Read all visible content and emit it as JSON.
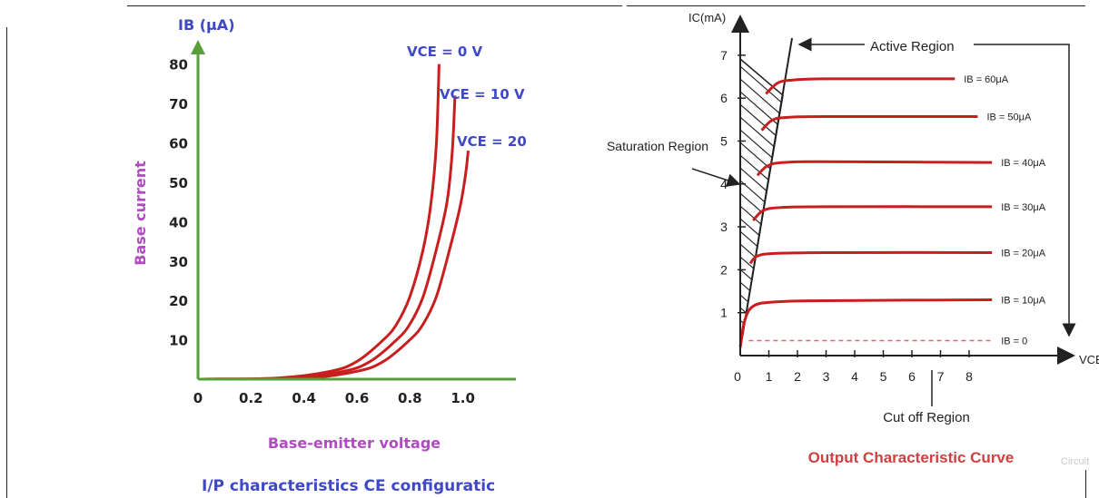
{
  "colors": {
    "axis_left": "#5a9e3a",
    "curve": "#c81e1e",
    "label_blue": "#3f49c8",
    "label_purple": "#b04bc0",
    "text_dark": "#222222",
    "dashed": "#d46a6a",
    "title_red": "#d04040"
  },
  "chart_data": [
    {
      "type": "line",
      "title": "I/P characteristics CE configuratic",
      "xlabel": "Base-emitter voltage",
      "ylabel": "Base current",
      "y_axis_unit_label": "IB (μA)",
      "x_ticks": [
        "0",
        "0.2",
        "0.4",
        "0.6",
        "0.8",
        "1.0"
      ],
      "y_ticks": [
        "10",
        "20",
        "30",
        "40",
        "50",
        "60",
        "70",
        "80"
      ],
      "xlim": [
        0,
        1.2
      ],
      "ylim": [
        0,
        85
      ],
      "series": [
        {
          "name": "VCE = 0 V",
          "x": [
            0,
            0.3,
            0.5,
            0.6,
            0.7,
            0.75,
            0.8,
            0.85,
            0.88,
            0.9,
            0.91
          ],
          "y": [
            0,
            0.3,
            2,
            4.5,
            10,
            14,
            21,
            33,
            45,
            60,
            80
          ]
        },
        {
          "name": "VCE = 10 V",
          "x": [
            0,
            0.35,
            0.55,
            0.65,
            0.75,
            0.8,
            0.85,
            0.9,
            0.94,
            0.96,
            0.97
          ],
          "y": [
            0,
            0.3,
            2,
            4.5,
            10,
            14,
            21,
            33,
            45,
            58,
            72
          ]
        },
        {
          "name": "VCE = 20",
          "x": [
            0,
            0.4,
            0.6,
            0.7,
            0.8,
            0.85,
            0.9,
            0.95,
            0.99,
            1.01,
            1.02
          ],
          "y": [
            0,
            0.3,
            2,
            4.5,
            10,
            14,
            21,
            33,
            44,
            52,
            58
          ]
        }
      ]
    },
    {
      "type": "line",
      "title": "Output Characteristic Curve",
      "y_axis_unit_label": "IC(mA)",
      "x_axis_unit_label": "VCE",
      "x_ticks": [
        "0",
        "1",
        "2",
        "3",
        "4",
        "5",
        "6",
        "7",
        "8"
      ],
      "y_ticks": [
        "1",
        "2",
        "3",
        "4",
        "5",
        "6",
        "7"
      ],
      "xlim": [
        0,
        11.5
      ],
      "ylim": [
        0,
        7.6
      ],
      "series": [
        {
          "name": "IB = 60μA",
          "x": [
            0.9,
            1.3,
            1.8,
            3,
            7.5
          ],
          "y": [
            6.1,
            6.35,
            6.42,
            6.45,
            6.45
          ]
        },
        {
          "name": "IB = 50μA",
          "x": [
            0.75,
            1.1,
            1.6,
            3,
            8.3
          ],
          "y": [
            5.25,
            5.48,
            5.55,
            5.57,
            5.57
          ]
        },
        {
          "name": "IB = 40μA",
          "x": [
            0.6,
            0.95,
            1.5,
            3,
            8.8
          ],
          "y": [
            4.2,
            4.42,
            4.5,
            4.52,
            4.5
          ]
        },
        {
          "name": "IB = 30μA",
          "x": [
            0.45,
            0.8,
            1.4,
            3,
            8.8
          ],
          "y": [
            3.15,
            3.38,
            3.45,
            3.47,
            3.47
          ]
        },
        {
          "name": "IB = 20μA",
          "x": [
            0.35,
            0.6,
            1.2,
            3,
            8.8
          ],
          "y": [
            2.15,
            2.32,
            2.38,
            2.4,
            2.4
          ]
        },
        {
          "name": "IB = 10μA",
          "x": [
            0.0,
            0.15,
            0.45,
            1.2,
            3,
            8.8
          ],
          "y": [
            0.2,
            0.8,
            1.15,
            1.25,
            1.28,
            1.3
          ]
        },
        {
          "name": "IB = 0",
          "x": [
            0.3,
            8.8
          ],
          "y": [
            0.35,
            0.35
          ]
        }
      ],
      "annotations": [
        "Active Region",
        "Saturation Region",
        "Cut off Region"
      ],
      "watermark": "Circuit"
    }
  ]
}
